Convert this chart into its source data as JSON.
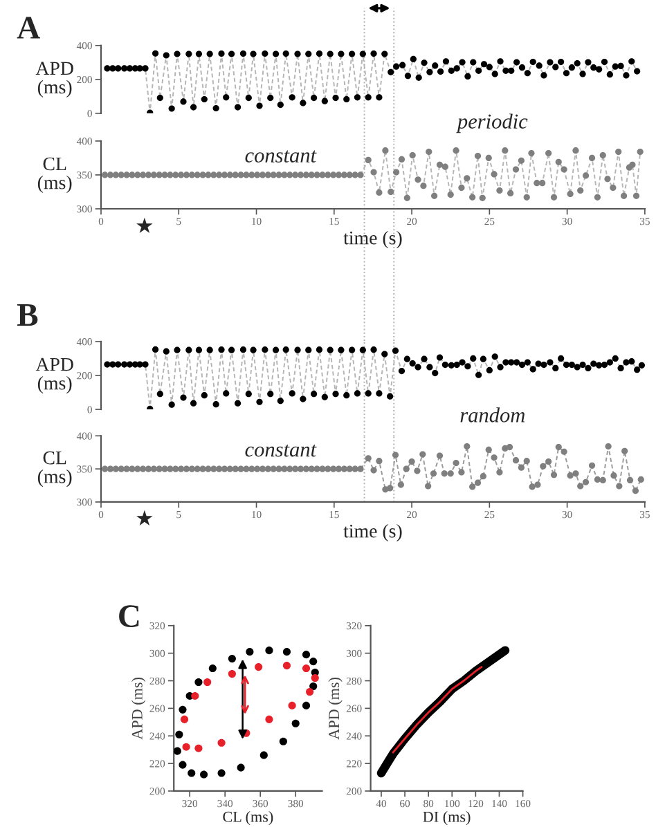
{
  "chart_data": [
    {
      "type": "scatter",
      "title": "A",
      "ylabel": "APD\n(ms)",
      "xlim": [
        0,
        35
      ],
      "xticks": [
        0,
        5,
        10,
        15,
        20,
        25,
        30,
        35
      ],
      "ylim": [
        0,
        400
      ],
      "yticks": [
        0,
        200,
        400
      ],
      "tick_labels": "y",
      "ref_lines": [
        {
          "axis": "x",
          "value": 16.95,
          "color": "#b0b0b0",
          "line_style": "dotted"
        },
        {
          "axis": "x",
          "value": 18.85,
          "color": "#b0b0b0",
          "line_style": "dotted"
        }
      ],
      "series": [
        {
          "type": "line",
          "color": "#b5b5b5",
          "line_style": "dashed",
          "x": [
            0.4,
            0.75,
            1.1,
            1.5,
            1.85,
            2.2,
            2.5,
            2.85,
            3.15,
            3.5,
            3.8,
            4.2,
            4.55,
            4.9,
            5.3,
            5.65,
            5.95,
            6.3,
            6.65,
            7.0,
            7.4,
            7.75,
            8.05,
            8.4,
            8.8,
            9.15,
            9.5,
            9.8,
            10.2,
            10.55,
            10.9,
            11.25,
            11.55,
            11.9,
            12.3,
            12.65,
            13.0,
            13.35,
            13.7,
            14.05,
            14.4,
            14.75,
            15.1,
            15.45,
            15.8,
            16.15,
            16.5,
            16.85,
            17.2,
            17.55,
            17.9,
            18.25,
            18.65,
            19.0,
            19.4,
            19.75,
            20.1,
            20.45,
            20.8,
            21.15,
            21.5,
            21.85,
            22.2,
            22.55,
            22.9,
            23.25,
            23.6,
            23.95,
            24.3,
            24.65,
            25.0,
            25.35,
            25.7,
            26.05,
            26.4,
            26.75,
            27.1,
            27.45,
            27.8,
            28.2,
            28.5,
            28.9,
            29.25,
            29.6,
            29.95,
            30.3,
            30.65,
            31.0,
            31.35,
            31.7,
            32.05,
            32.4,
            32.75,
            33.1,
            33.45,
            33.8,
            34.15,
            34.5
          ],
          "values": [
            265,
            265,
            265,
            265,
            265,
            265,
            265,
            265,
            3,
            353,
            91,
            342,
            28,
            350,
            69,
            350,
            36,
            350,
            83,
            350,
            30,
            352,
            94,
            350,
            36,
            352,
            91,
            350,
            44,
            352,
            91,
            350,
            50,
            352,
            94,
            350,
            61,
            350,
            91,
            352,
            72,
            350,
            91,
            350,
            83,
            350,
            94,
            350,
            94,
            352,
            94,
            350,
            243,
            276,
            284,
            221,
            320,
            210,
            298,
            243,
            281,
            246,
            306,
            251,
            265,
            301,
            218,
            301,
            251,
            290,
            273,
            232,
            306,
            251,
            251,
            301,
            270,
            237,
            303,
            281,
            224,
            301,
            273,
            303,
            237,
            270,
            295,
            232,
            301,
            270,
            259,
            303,
            229,
            276,
            279,
            224,
            306,
            248
          ]
        },
        {
          "type": "scatter",
          "color": "#000000",
          "marker": "circle",
          "x": [
            0.4,
            0.75,
            1.1,
            1.5,
            1.85,
            2.2,
            2.5,
            2.85,
            3.15,
            3.5,
            3.8,
            4.2,
            4.55,
            4.9,
            5.3,
            5.65,
            5.95,
            6.3,
            6.65,
            7.0,
            7.4,
            7.75,
            8.05,
            8.4,
            8.8,
            9.15,
            9.5,
            9.8,
            10.2,
            10.55,
            10.9,
            11.25,
            11.55,
            11.9,
            12.3,
            12.65,
            13.0,
            13.35,
            13.7,
            14.05,
            14.4,
            14.75,
            15.1,
            15.45,
            15.8,
            16.15,
            16.5,
            16.85,
            17.2,
            17.55,
            17.9,
            18.25,
            18.65,
            19.0,
            19.4,
            19.75,
            20.1,
            20.45,
            20.8,
            21.15,
            21.5,
            21.85,
            22.2,
            22.55,
            22.9,
            23.25,
            23.6,
            23.95,
            24.3,
            24.65,
            25.0,
            25.35,
            25.7,
            26.05,
            26.4,
            26.75,
            27.1,
            27.45,
            27.8,
            28.2,
            28.5,
            28.9,
            29.25,
            29.6,
            29.95,
            30.3,
            30.65,
            31.0,
            31.35,
            31.7,
            32.05,
            32.4,
            32.75,
            33.1,
            33.45,
            33.8,
            34.15,
            34.5
          ],
          "values": [
            265,
            265,
            265,
            265,
            265,
            265,
            265,
            265,
            3,
            353,
            91,
            342,
            28,
            350,
            69,
            350,
            36,
            350,
            83,
            350,
            30,
            352,
            94,
            350,
            36,
            352,
            91,
            350,
            44,
            352,
            91,
            350,
            50,
            352,
            94,
            350,
            61,
            350,
            91,
            352,
            72,
            350,
            91,
            350,
            83,
            350,
            94,
            350,
            94,
            352,
            94,
            350,
            243,
            276,
            284,
            221,
            320,
            210,
            298,
            243,
            281,
            246,
            306,
            251,
            265,
            301,
            218,
            301,
            251,
            290,
            273,
            232,
            306,
            251,
            251,
            301,
            270,
            237,
            303,
            281,
            224,
            301,
            273,
            303,
            237,
            270,
            295,
            232,
            301,
            270,
            259,
            303,
            229,
            276,
            279,
            224,
            306,
            248
          ]
        }
      ]
    },
    {
      "type": "scatter",
      "ylabel": "CL\n(ms)",
      "xlabel": "time (s)",
      "xlim": [
        0,
        35
      ],
      "xticks": [
        0,
        5,
        10,
        15,
        20,
        25,
        30,
        35
      ],
      "ylim": [
        300,
        400
      ],
      "yticks": [
        300,
        350,
        400
      ],
      "annotations": [
        "constant",
        "periodic",
        "★"
      ],
      "ref_lines": [
        {
          "axis": "x",
          "value": 16.95,
          "color": "#b0b0b0",
          "line_style": "dotted"
        },
        {
          "axis": "x",
          "value": 18.85,
          "color": "#b0b0b0",
          "line_style": "dotted"
        }
      ],
      "series": [
        {
          "type": "line",
          "color": "#b5b5b5",
          "line_style": "dashed",
          "x": [
            0.25,
            0.6,
            0.95,
            1.3,
            1.65,
            2.0,
            2.35,
            2.7,
            3.05,
            3.4,
            3.75,
            4.1,
            4.45,
            4.8,
            5.15,
            5.5,
            5.85,
            6.2,
            6.55,
            6.9,
            7.25,
            7.6,
            7.95,
            8.3,
            8.65,
            9.0,
            9.35,
            9.7,
            10.05,
            10.4,
            10.75,
            11.1,
            11.45,
            11.8,
            12.15,
            12.5,
            12.85,
            13.2,
            13.55,
            13.9,
            14.25,
            14.6,
            14.95,
            15.3,
            15.65,
            16.0,
            16.35,
            16.7,
            17.2,
            17.55,
            17.9,
            18.3,
            18.65,
            19.0,
            19.35,
            19.7,
            20.05,
            20.4,
            20.75,
            21.1,
            21.45,
            21.8,
            22.15,
            22.5,
            22.85,
            23.2,
            23.55,
            23.9,
            24.25,
            24.55,
            24.95,
            25.3,
            25.65,
            26.0,
            26.35,
            26.7,
            27.05,
            27.4,
            27.7,
            28.05,
            28.4,
            28.8,
            29.15,
            29.45,
            29.8,
            30.2,
            30.55,
            30.85,
            31.2,
            31.6,
            31.95,
            32.3,
            32.6,
            32.95,
            33.3,
            33.65,
            34.0,
            34.2,
            34.45,
            34.7
          ],
          "values": [
            350,
            350,
            350,
            350,
            350,
            350,
            350,
            350,
            350,
            350,
            350,
            350,
            350,
            350,
            350,
            350,
            350,
            350,
            350,
            350,
            350,
            350,
            350,
            350,
            350,
            350,
            350,
            350,
            350,
            350,
            350,
            350,
            350,
            350,
            350,
            350,
            350,
            350,
            350,
            350,
            350,
            350,
            350,
            350,
            350,
            350,
            350,
            350,
            372,
            354,
            324,
            386,
            325,
            354,
            373,
            316,
            379,
            343,
            334,
            384,
            319,
            365,
            362,
            321,
            386,
            331,
            345,
            317,
            378,
            316,
            375,
            351,
            327,
            386,
            323,
            358,
            371,
            317,
            382,
            338,
            338,
            382,
            317,
            369,
            358,
            322,
            386,
            327,
            349,
            375,
            317,
            379,
            344,
            331,
            384,
            319,
            361,
            365,
            319,
            384
          ]
        },
        {
          "type": "scatter",
          "color": "#7f7f7f",
          "marker": "circle",
          "x": [
            0.25,
            0.6,
            0.95,
            1.3,
            1.65,
            2.0,
            2.35,
            2.7,
            3.05,
            3.4,
            3.75,
            4.1,
            4.45,
            4.8,
            5.15,
            5.5,
            5.85,
            6.2,
            6.55,
            6.9,
            7.25,
            7.6,
            7.95,
            8.3,
            8.65,
            9.0,
            9.35,
            9.7,
            10.05,
            10.4,
            10.75,
            11.1,
            11.45,
            11.8,
            12.15,
            12.5,
            12.85,
            13.2,
            13.55,
            13.9,
            14.25,
            14.6,
            14.95,
            15.3,
            15.65,
            16.0,
            16.35,
            16.7,
            17.2,
            17.55,
            17.9,
            18.3,
            18.65,
            19.0,
            19.35,
            19.7,
            20.05,
            20.4,
            20.75,
            21.1,
            21.45,
            21.8,
            22.15,
            22.5,
            22.85,
            23.2,
            23.55,
            23.9,
            24.25,
            24.55,
            24.95,
            25.3,
            25.65,
            26.0,
            26.35,
            26.7,
            27.05,
            27.4,
            27.7,
            28.05,
            28.4,
            28.8,
            29.15,
            29.45,
            29.8,
            30.2,
            30.55,
            30.85,
            31.2,
            31.6,
            31.95,
            32.3,
            32.6,
            32.95,
            33.3,
            33.65,
            34.0,
            34.2,
            34.45,
            34.7
          ],
          "values": [
            350,
            350,
            350,
            350,
            350,
            350,
            350,
            350,
            350,
            350,
            350,
            350,
            350,
            350,
            350,
            350,
            350,
            350,
            350,
            350,
            350,
            350,
            350,
            350,
            350,
            350,
            350,
            350,
            350,
            350,
            350,
            350,
            350,
            350,
            350,
            350,
            350,
            350,
            350,
            350,
            350,
            350,
            350,
            350,
            350,
            350,
            350,
            350,
            372,
            354,
            324,
            386,
            325,
            354,
            373,
            316,
            379,
            343,
            334,
            384,
            319,
            365,
            362,
            321,
            386,
            331,
            345,
            317,
            378,
            316,
            375,
            351,
            327,
            386,
            323,
            358,
            371,
            317,
            382,
            338,
            338,
            382,
            317,
            369,
            358,
            322,
            386,
            327,
            349,
            375,
            317,
            379,
            344,
            331,
            384,
            319,
            361,
            365,
            319,
            384
          ]
        }
      ]
    },
    {
      "type": "scatter",
      "title": "B",
      "ylabel": "APD\n(ms)",
      "xlim": [
        0,
        35
      ],
      "xticks": [
        0,
        5,
        10,
        15,
        20,
        25,
        30,
        35
      ],
      "ylim": [
        0,
        400
      ],
      "yticks": [
        0,
        200,
        400
      ],
      "tick_labels": "y",
      "ref_lines": [
        {
          "axis": "x",
          "value": 16.95,
          "color": "#b0b0b0",
          "line_style": "dotted"
        },
        {
          "axis": "x",
          "value": 18.85,
          "color": "#b0b0b0",
          "line_style": "dotted"
        }
      ],
      "series": [
        {
          "type": "line",
          "color": "#b5b5b5",
          "line_style": "dashed",
          "x": [
            0.4,
            0.75,
            1.1,
            1.5,
            1.85,
            2.2,
            2.5,
            2.85,
            3.15,
            3.5,
            3.8,
            4.2,
            4.55,
            4.9,
            5.3,
            5.65,
            5.95,
            6.3,
            6.65,
            7.0,
            7.4,
            7.75,
            8.05,
            8.4,
            8.8,
            9.15,
            9.5,
            9.8,
            10.2,
            10.55,
            10.9,
            11.25,
            11.55,
            11.9,
            12.3,
            12.65,
            13.0,
            13.35,
            13.7,
            14.05,
            14.4,
            14.75,
            15.1,
            15.45,
            15.8,
            16.15,
            16.5,
            16.85,
            17.2,
            17.55,
            17.9,
            18.25,
            18.6,
            18.95,
            19.35,
            19.7,
            20.05,
            20.4,
            20.8,
            21.15,
            21.5,
            21.8,
            22.15,
            22.55,
            22.9,
            23.25,
            23.6,
            23.95,
            24.3,
            24.6,
            25.0,
            25.35,
            25.7,
            26.05,
            26.4,
            26.75,
            27.1,
            27.45,
            27.8,
            28.15,
            28.5,
            28.9,
            29.25,
            29.6,
            29.95,
            30.3,
            30.65,
            31.0,
            31.35,
            31.7,
            32.05,
            32.4,
            32.75,
            33.1,
            33.45,
            33.8,
            34.15,
            34.5,
            34.8
          ],
          "values": [
            265,
            265,
            265,
            265,
            265,
            265,
            265,
            265,
            3,
            353,
            91,
            342,
            28,
            350,
            69,
            350,
            36,
            350,
            83,
            350,
            30,
            352,
            94,
            350,
            36,
            352,
            91,
            350,
            44,
            352,
            91,
            350,
            50,
            352,
            94,
            350,
            61,
            350,
            91,
            352,
            72,
            350,
            91,
            350,
            83,
            350,
            94,
            350,
            94,
            352,
            94,
            326,
            77,
            346,
            226,
            297,
            271,
            249,
            297,
            249,
            214,
            306,
            263,
            260,
            263,
            277,
            254,
            300,
            203,
            297,
            231,
            311,
            249,
            277,
            277,
            277,
            263,
            277,
            237,
            269,
            263,
            277,
            243,
            300,
            263,
            263,
            249,
            263,
            243,
            269,
            260,
            263,
            277,
            300,
            243,
            277,
            283,
            234,
            260
          ]
        },
        {
          "type": "scatter",
          "color": "#000000",
          "marker": "circle",
          "x": [
            0.4,
            0.75,
            1.1,
            1.5,
            1.85,
            2.2,
            2.5,
            2.85,
            3.15,
            3.5,
            3.8,
            4.2,
            4.55,
            4.9,
            5.3,
            5.65,
            5.95,
            6.3,
            6.65,
            7.0,
            7.4,
            7.75,
            8.05,
            8.4,
            8.8,
            9.15,
            9.5,
            9.8,
            10.2,
            10.55,
            10.9,
            11.25,
            11.55,
            11.9,
            12.3,
            12.65,
            13.0,
            13.35,
            13.7,
            14.05,
            14.4,
            14.75,
            15.1,
            15.45,
            15.8,
            16.15,
            16.5,
            16.85,
            17.2,
            17.55,
            17.9,
            18.25,
            18.6,
            18.95,
            19.35,
            19.7,
            20.05,
            20.4,
            20.8,
            21.15,
            21.5,
            21.8,
            22.15,
            22.55,
            22.9,
            23.25,
            23.6,
            23.95,
            24.3,
            24.6,
            25.0,
            25.35,
            25.7,
            26.05,
            26.4,
            26.75,
            27.1,
            27.45,
            27.8,
            28.15,
            28.5,
            28.9,
            29.25,
            29.6,
            29.95,
            30.3,
            30.65,
            31.0,
            31.35,
            31.7,
            32.05,
            32.4,
            32.75,
            33.1,
            33.45,
            33.8,
            34.15,
            34.5,
            34.8
          ],
          "values": [
            265,
            265,
            265,
            265,
            265,
            265,
            265,
            265,
            3,
            353,
            91,
            342,
            28,
            350,
            69,
            350,
            36,
            350,
            83,
            350,
            30,
            352,
            94,
            350,
            36,
            352,
            91,
            350,
            44,
            352,
            91,
            350,
            50,
            352,
            94,
            350,
            61,
            350,
            91,
            352,
            72,
            350,
            91,
            350,
            83,
            350,
            94,
            350,
            94,
            352,
            94,
            326,
            77,
            346,
            226,
            297,
            271,
            249,
            297,
            249,
            214,
            306,
            263,
            260,
            263,
            277,
            254,
            300,
            203,
            297,
            231,
            311,
            249,
            277,
            277,
            277,
            263,
            277,
            237,
            269,
            263,
            277,
            243,
            300,
            263,
            263,
            249,
            263,
            243,
            269,
            260,
            263,
            277,
            300,
            243,
            277,
            283,
            234,
            260
          ]
        }
      ]
    },
    {
      "type": "scatter",
      "ylabel": "CL\n(ms)",
      "xlabel": "time (s)",
      "xlim": [
        0,
        35
      ],
      "xticks": [
        0,
        5,
        10,
        15,
        20,
        25,
        30,
        35
      ],
      "ylim": [
        300,
        400
      ],
      "yticks": [
        300,
        350,
        400
      ],
      "annotations": [
        "constant",
        "random",
        "★"
      ],
      "ref_lines": [
        {
          "axis": "x",
          "value": 16.95,
          "color": "#b0b0b0",
          "line_style": "dotted"
        },
        {
          "axis": "x",
          "value": 18.85,
          "color": "#b0b0b0",
          "line_style": "dotted"
        }
      ],
      "series": [
        {
          "type": "line",
          "color": "#9a9a9a",
          "line_style": "dashed",
          "x": [
            0.25,
            0.6,
            0.95,
            1.3,
            1.65,
            2.0,
            2.35,
            2.7,
            3.05,
            3.4,
            3.75,
            4.1,
            4.45,
            4.8,
            5.15,
            5.5,
            5.85,
            6.2,
            6.55,
            6.9,
            7.25,
            7.6,
            7.95,
            8.3,
            8.65,
            9.0,
            9.35,
            9.7,
            10.05,
            10.4,
            10.75,
            11.1,
            11.45,
            11.8,
            12.15,
            12.5,
            12.85,
            13.2,
            13.55,
            13.9,
            14.25,
            14.6,
            14.95,
            15.3,
            15.65,
            16.0,
            16.35,
            16.7,
            17.2,
            17.55,
            17.9,
            18.3,
            18.6,
            18.95,
            19.3,
            19.65,
            20.0,
            20.35,
            20.7,
            21.05,
            21.4,
            21.8,
            22.1,
            22.5,
            22.85,
            23.2,
            23.55,
            23.9,
            24.25,
            24.6,
            24.95,
            25.3,
            25.65,
            26.0,
            26.3,
            26.7,
            27.05,
            27.4,
            27.75,
            28.1,
            28.45,
            28.8,
            29.15,
            29.45,
            29.8,
            30.2,
            30.55,
            30.85,
            31.2,
            31.6,
            31.95,
            32.3,
            32.65,
            33.0,
            33.35,
            33.7,
            34.05,
            34.4,
            34.75
          ],
          "values": [
            350,
            350,
            350,
            350,
            350,
            350,
            350,
            350,
            350,
            350,
            350,
            350,
            350,
            350,
            350,
            350,
            350,
            350,
            350,
            350,
            350,
            350,
            350,
            350,
            350,
            350,
            350,
            350,
            350,
            350,
            350,
            350,
            350,
            350,
            350,
            350,
            350,
            350,
            350,
            350,
            350,
            350,
            350,
            350,
            350,
            350,
            350,
            350,
            366,
            348,
            362,
            319,
            321,
            371,
            326,
            350,
            361,
            347,
            372,
            324,
            343,
            370,
            343,
            343,
            359,
            345,
            384,
            323,
            329,
            339,
            379,
            367,
            345,
            381,
            383,
            363,
            352,
            362,
            323,
            326,
            354,
            361,
            341,
            383,
            376,
            340,
            343,
            324,
            330,
            355,
            334,
            333,
            384,
            340,
            324,
            377,
            333,
            317,
            334
          ]
        },
        {
          "type": "scatter",
          "color": "#7f7f7f",
          "marker": "circle",
          "x": [
            0.25,
            0.6,
            0.95,
            1.3,
            1.65,
            2.0,
            2.35,
            2.7,
            3.05,
            3.4,
            3.75,
            4.1,
            4.45,
            4.8,
            5.15,
            5.5,
            5.85,
            6.2,
            6.55,
            6.9,
            7.25,
            7.6,
            7.95,
            8.3,
            8.65,
            9.0,
            9.35,
            9.7,
            10.05,
            10.4,
            10.75,
            11.1,
            11.45,
            11.8,
            12.15,
            12.5,
            12.85,
            13.2,
            13.55,
            13.9,
            14.25,
            14.6,
            14.95,
            15.3,
            15.65,
            16.0,
            16.35,
            16.7,
            17.2,
            17.55,
            17.9,
            18.3,
            18.6,
            18.95,
            19.3,
            19.65,
            20.0,
            20.35,
            20.7,
            21.05,
            21.4,
            21.8,
            22.1,
            22.5,
            22.85,
            23.2,
            23.55,
            23.9,
            24.25,
            24.6,
            24.95,
            25.3,
            25.65,
            26.0,
            26.3,
            26.7,
            27.05,
            27.4,
            27.75,
            28.1,
            28.45,
            28.8,
            29.15,
            29.45,
            29.8,
            30.2,
            30.55,
            30.85,
            31.2,
            31.6,
            31.95,
            32.3,
            32.65,
            33.0,
            33.35,
            33.7,
            34.05,
            34.4,
            34.75
          ],
          "values": [
            350,
            350,
            350,
            350,
            350,
            350,
            350,
            350,
            350,
            350,
            350,
            350,
            350,
            350,
            350,
            350,
            350,
            350,
            350,
            350,
            350,
            350,
            350,
            350,
            350,
            350,
            350,
            350,
            350,
            350,
            350,
            350,
            350,
            350,
            350,
            350,
            350,
            350,
            350,
            350,
            350,
            350,
            350,
            350,
            350,
            350,
            350,
            350,
            366,
            348,
            362,
            319,
            321,
            371,
            326,
            350,
            361,
            347,
            372,
            324,
            343,
            370,
            343,
            343,
            359,
            345,
            384,
            323,
            329,
            339,
            379,
            367,
            345,
            381,
            383,
            363,
            352,
            362,
            323,
            326,
            354,
            361,
            341,
            383,
            376,
            340,
            343,
            324,
            330,
            355,
            334,
            333,
            384,
            340,
            324,
            377,
            333,
            317,
            334
          ]
        }
      ]
    },
    {
      "type": "scatter",
      "title": "C",
      "xlabel": "CL (ms)",
      "ylabel": "APD (ms)",
      "xlim": [
        311,
        395
      ],
      "xticks": [
        320,
        340,
        360,
        380
      ],
      "ylim": [
        200,
        320
      ],
      "yticks": [
        200,
        220,
        240,
        260,
        280,
        300,
        320
      ],
      "series": [
        {
          "color": "#000000",
          "marker": "circle",
          "x": [
            314,
            316,
            320,
            325,
            333,
            344,
            354,
            365,
            375,
            386,
            390,
            391,
            390,
            386,
            380,
            373,
            362,
            349,
            338,
            328,
            321,
            316,
            313
          ],
          "values": [
            241,
            259,
            269,
            279,
            289,
            296,
            301,
            302,
            301,
            299,
            294,
            286,
            276,
            262,
            249,
            236,
            226,
            217,
            213,
            212,
            213,
            219,
            229
          ]
        },
        {
          "color": "#e8202a",
          "marker": "circle",
          "x": [
            318,
            317,
            323,
            330,
            344,
            359,
            375,
            386,
            391,
            388,
            378,
            365,
            352,
            338,
            325
          ],
          "values": [
            232,
            252,
            269,
            279,
            285,
            290,
            291,
            289,
            282,
            272,
            262,
            252,
            242,
            235,
            231
          ]
        }
      ]
    },
    {
      "type": "line",
      "xlabel": "DI (ms)",
      "ylabel": "APD (ms)",
      "xlim": [
        31,
        160
      ],
      "xticks": [
        40,
        60,
        80,
        100,
        120,
        140,
        160
      ],
      "ylim": [
        200,
        320
      ],
      "yticks": [
        200,
        220,
        240,
        260,
        280,
        300,
        320
      ],
      "series": [
        {
          "color": "#000000",
          "x": [
            40,
            45,
            50,
            60,
            70,
            80,
            90,
            100,
            110,
            120,
            130,
            140,
            145
          ],
          "values": [
            213,
            220,
            227,
            238,
            248,
            257,
            265,
            274,
            280,
            287,
            293,
            299,
            302
          ]
        },
        {
          "color": "#e8202a",
          "x": [
            50,
            60,
            70,
            80,
            90,
            100,
            110,
            120,
            125
          ],
          "values": [
            228,
            238,
            248,
            257,
            265,
            274,
            280,
            287,
            290
          ]
        }
      ]
    }
  ]
}
